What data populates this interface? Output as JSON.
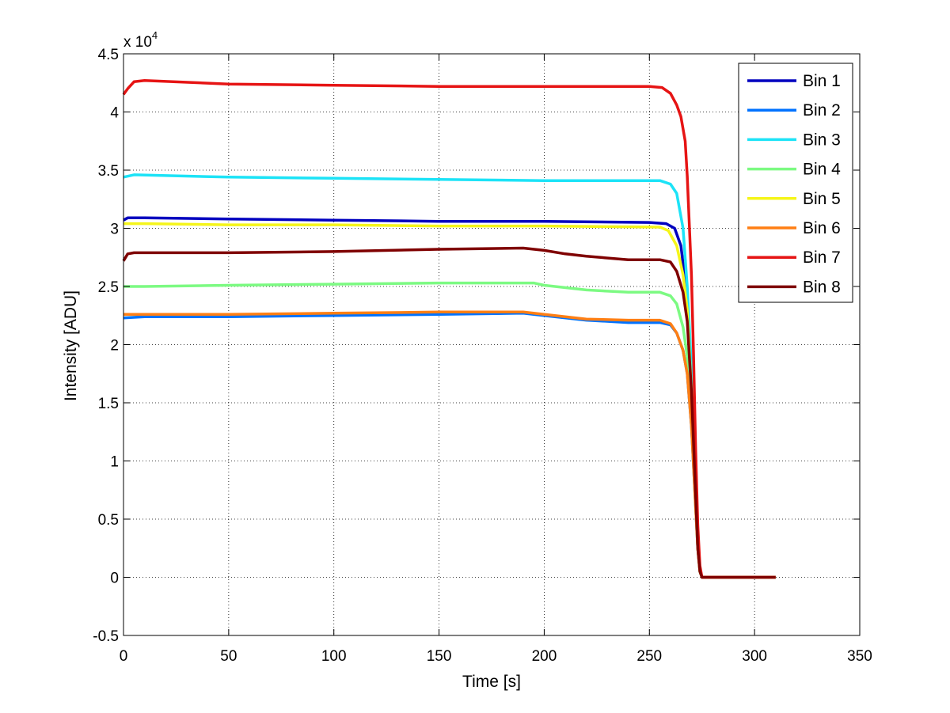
{
  "chart_data": {
    "type": "line",
    "xlabel": "Time [s]",
    "ylabel": "Intensity [ADU]",
    "y_multiplier": "x 10",
    "y_multiplier_exponent": "4",
    "xlim": [
      0,
      350
    ],
    "ylim": [
      -0.5,
      4.5
    ],
    "x_ticks": [
      0,
      50,
      100,
      150,
      200,
      250,
      300,
      350
    ],
    "x_tick_labels": [
      "0",
      "50",
      "100",
      "150",
      "200",
      "250",
      "300",
      "350"
    ],
    "y_ticks": [
      -0.5,
      0,
      0.5,
      1,
      1.5,
      2,
      2.5,
      3,
      3.5,
      4,
      4.5
    ],
    "y_tick_labels": [
      "-0.5",
      "0",
      "0.5",
      "1",
      "1.5",
      "2",
      "2.5",
      "3",
      "3.5",
      "4",
      "4.5"
    ],
    "grid": true,
    "legend_position": "top-right",
    "series": [
      {
        "name": "Bin 1",
        "color": "#0000bf",
        "points": [
          [
            0,
            3.07
          ],
          [
            2,
            3.09
          ],
          [
            10,
            3.09
          ],
          [
            50,
            3.08
          ],
          [
            100,
            3.07
          ],
          [
            150,
            3.06
          ],
          [
            200,
            3.06
          ],
          [
            250,
            3.05
          ],
          [
            258,
            3.04
          ],
          [
            262,
            3.0
          ],
          [
            265,
            2.85
          ],
          [
            268,
            2.4
          ],
          [
            270,
            1.7
          ],
          [
            272,
            0.8
          ],
          [
            273,
            0.3
          ],
          [
            274,
            0.05
          ],
          [
            275,
            0.0
          ],
          [
            310,
            0.0
          ]
        ]
      },
      {
        "name": "Bin 2",
        "color": "#0072ff",
        "points": [
          [
            0,
            2.23
          ],
          [
            10,
            2.24
          ],
          [
            50,
            2.24
          ],
          [
            100,
            2.25
          ],
          [
            150,
            2.26
          ],
          [
            190,
            2.27
          ],
          [
            200,
            2.25
          ],
          [
            220,
            2.21
          ],
          [
            240,
            2.19
          ],
          [
            255,
            2.19
          ],
          [
            260,
            2.17
          ],
          [
            263,
            2.1
          ],
          [
            266,
            1.95
          ],
          [
            268,
            1.75
          ],
          [
            270,
            1.3
          ],
          [
            272,
            0.6
          ],
          [
            273,
            0.25
          ],
          [
            274,
            0.05
          ],
          [
            275,
            0.0
          ],
          [
            310,
            0.0
          ]
        ]
      },
      {
        "name": "Bin 3",
        "color": "#1ce3f7",
        "points": [
          [
            0,
            3.44
          ],
          [
            5,
            3.46
          ],
          [
            50,
            3.44
          ],
          [
            100,
            3.43
          ],
          [
            150,
            3.42
          ],
          [
            200,
            3.41
          ],
          [
            255,
            3.41
          ],
          [
            260,
            3.38
          ],
          [
            263,
            3.3
          ],
          [
            266,
            3.0
          ],
          [
            268,
            2.5
          ],
          [
            270,
            1.8
          ],
          [
            272,
            0.8
          ],
          [
            273,
            0.3
          ],
          [
            274,
            0.05
          ],
          [
            275,
            0.0
          ],
          [
            310,
            0.0
          ]
        ]
      },
      {
        "name": "Bin 4",
        "color": "#7cfa82",
        "points": [
          [
            0,
            2.5
          ],
          [
            10,
            2.5
          ],
          [
            50,
            2.51
          ],
          [
            100,
            2.52
          ],
          [
            150,
            2.53
          ],
          [
            195,
            2.53
          ],
          [
            200,
            2.51
          ],
          [
            220,
            2.47
          ],
          [
            240,
            2.45
          ],
          [
            255,
            2.45
          ],
          [
            260,
            2.42
          ],
          [
            263,
            2.35
          ],
          [
            266,
            2.15
          ],
          [
            268,
            1.9
          ],
          [
            270,
            1.4
          ],
          [
            272,
            0.6
          ],
          [
            273,
            0.25
          ],
          [
            274,
            0.05
          ],
          [
            275,
            0.0
          ],
          [
            310,
            0.0
          ]
        ]
      },
      {
        "name": "Bin 5",
        "color": "#f5f51a",
        "points": [
          [
            0,
            3.04
          ],
          [
            10,
            3.04
          ],
          [
            50,
            3.03
          ],
          [
            100,
            3.03
          ],
          [
            150,
            3.02
          ],
          [
            200,
            3.02
          ],
          [
            255,
            3.01
          ],
          [
            259,
            2.98
          ],
          [
            263,
            2.85
          ],
          [
            266,
            2.6
          ],
          [
            268,
            2.3
          ],
          [
            270,
            1.6
          ],
          [
            272,
            0.7
          ],
          [
            273,
            0.25
          ],
          [
            274,
            0.05
          ],
          [
            275,
            0.0
          ],
          [
            310,
            0.0
          ]
        ]
      },
      {
        "name": "Bin 6",
        "color": "#ff7f14",
        "points": [
          [
            0,
            2.26
          ],
          [
            10,
            2.26
          ],
          [
            50,
            2.26
          ],
          [
            100,
            2.27
          ],
          [
            150,
            2.28
          ],
          [
            190,
            2.28
          ],
          [
            200,
            2.26
          ],
          [
            220,
            2.22
          ],
          [
            240,
            2.21
          ],
          [
            255,
            2.21
          ],
          [
            260,
            2.18
          ],
          [
            263,
            2.1
          ],
          [
            266,
            1.95
          ],
          [
            268,
            1.75
          ],
          [
            270,
            1.3
          ],
          [
            272,
            0.6
          ],
          [
            273,
            0.25
          ],
          [
            274,
            0.05
          ],
          [
            275,
            0.0
          ],
          [
            310,
            0.0
          ]
        ]
      },
      {
        "name": "Bin 7",
        "color": "#e61414",
        "points": [
          [
            0,
            4.15
          ],
          [
            2,
            4.2
          ],
          [
            5,
            4.26
          ],
          [
            10,
            4.27
          ],
          [
            50,
            4.24
          ],
          [
            100,
            4.23
          ],
          [
            150,
            4.22
          ],
          [
            200,
            4.22
          ],
          [
            250,
            4.22
          ],
          [
            256,
            4.21
          ],
          [
            260,
            4.16
          ],
          [
            263,
            4.06
          ],
          [
            265,
            3.96
          ],
          [
            267,
            3.75
          ],
          [
            268,
            3.45
          ],
          [
            270,
            2.6
          ],
          [
            271,
            1.9
          ],
          [
            272,
            1.1
          ],
          [
            273,
            0.45
          ],
          [
            274,
            0.1
          ],
          [
            275,
            0.0
          ],
          [
            310,
            0.0
          ]
        ]
      },
      {
        "name": "Bin 8",
        "color": "#7f0000",
        "points": [
          [
            0,
            2.72
          ],
          [
            2,
            2.78
          ],
          [
            5,
            2.79
          ],
          [
            50,
            2.79
          ],
          [
            100,
            2.8
          ],
          [
            150,
            2.82
          ],
          [
            190,
            2.83
          ],
          [
            200,
            2.81
          ],
          [
            210,
            2.78
          ],
          [
            220,
            2.76
          ],
          [
            240,
            2.73
          ],
          [
            255,
            2.73
          ],
          [
            260,
            2.71
          ],
          [
            263,
            2.63
          ],
          [
            266,
            2.45
          ],
          [
            268,
            2.2
          ],
          [
            270,
            1.6
          ],
          [
            272,
            0.7
          ],
          [
            273,
            0.25
          ],
          [
            274,
            0.05
          ],
          [
            275,
            0.0
          ],
          [
            310,
            0.0
          ]
        ]
      }
    ]
  }
}
